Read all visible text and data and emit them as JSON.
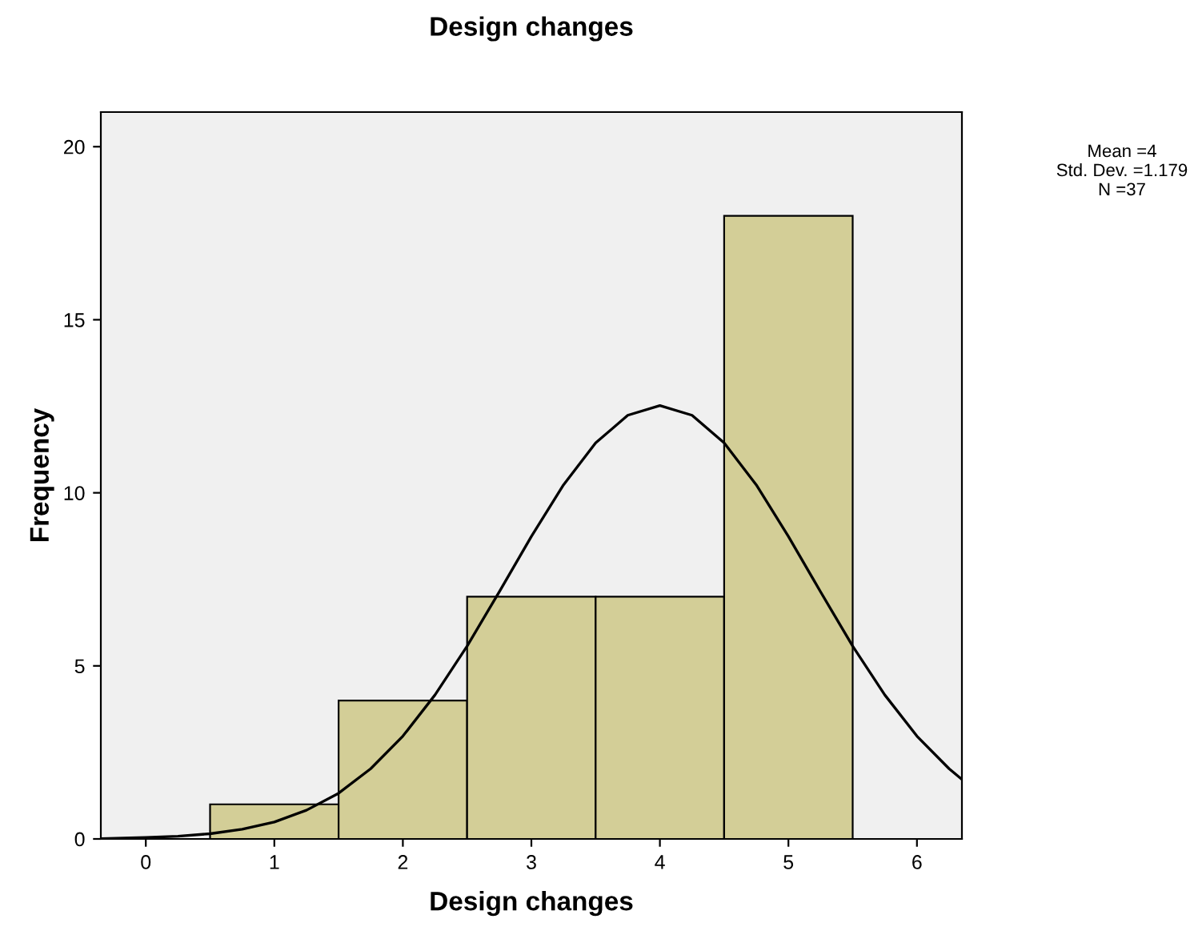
{
  "chart_data": {
    "type": "histogram",
    "title": "Design changes",
    "xlabel": "Design changes",
    "ylabel": "Frequency",
    "bins": [
      0.5,
      1.5,
      2.5,
      3.5,
      4.5,
      5.5
    ],
    "values": [
      1,
      4,
      7,
      7,
      18
    ],
    "color": "#d3ce97",
    "series": [
      {
        "type": "line",
        "color": "#000000",
        "x": [
          -0.35,
          0,
          0.25,
          0.5,
          0.75,
          1,
          1.25,
          1.5,
          1.75,
          2,
          2.25,
          2.5,
          2.75,
          3,
          3.25,
          3.5,
          3.75,
          4,
          4.25,
          4.5,
          4.75,
          5,
          5.25,
          5.5,
          5.75,
          6,
          6.25,
          6.35
        ],
        "values": [
          0.01,
          0.04,
          0.08,
          0.15,
          0.28,
          0.49,
          0.83,
          1.32,
          2.03,
          2.97,
          4.16,
          5.57,
          7.14,
          8.74,
          10.23,
          11.44,
          12.24,
          12.52,
          12.24,
          11.44,
          10.23,
          8.74,
          7.14,
          5.57,
          4.16,
          2.97,
          2.03,
          1.72
        ]
      }
    ],
    "xlim": [
      -0.35,
      6.35
    ],
    "xticks": [
      0,
      1,
      2,
      3,
      4,
      5,
      6
    ],
    "ylim": [
      0,
      21
    ],
    "yticks": [
      0,
      5,
      10,
      15,
      20
    ],
    "grid": false,
    "legend": false,
    "annotations": [
      "Mean =4\nStd. Dev. =1.179\nN =37"
    ]
  }
}
